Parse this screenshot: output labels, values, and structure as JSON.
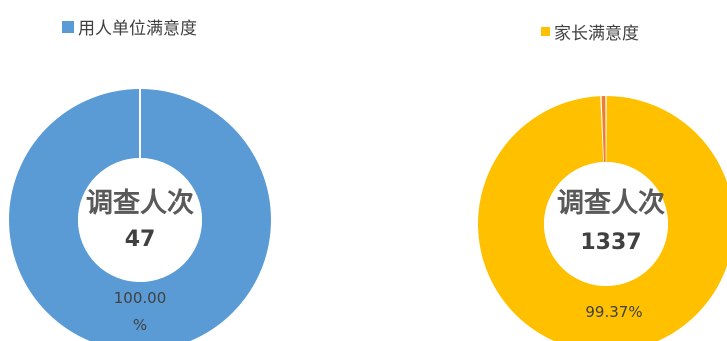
{
  "chart_data": [
    {
      "type": "pie",
      "donut": true,
      "legend": "top-left",
      "legend_entries": [
        "用人单位满意度"
      ],
      "series": [
        {
          "name": "用人单位满意度",
          "value": 100.0,
          "color": "#5B9BD5"
        }
      ],
      "center_title": "调查人次",
      "center_count": "47",
      "slice_label_line1": "100.00",
      "slice_label_line2": "%"
    },
    {
      "type": "pie",
      "donut": true,
      "legend": "top-right",
      "legend_entries": [
        "家长满意度"
      ],
      "series": [
        {
          "name": "家长满意度",
          "value": 99.37,
          "color": "#FFC000"
        },
        {
          "value": 0.63,
          "color": "#ED7D31"
        }
      ],
      "center_title": "调查人次",
      "center_count": "1337",
      "slice_label": "99.37%"
    }
  ]
}
